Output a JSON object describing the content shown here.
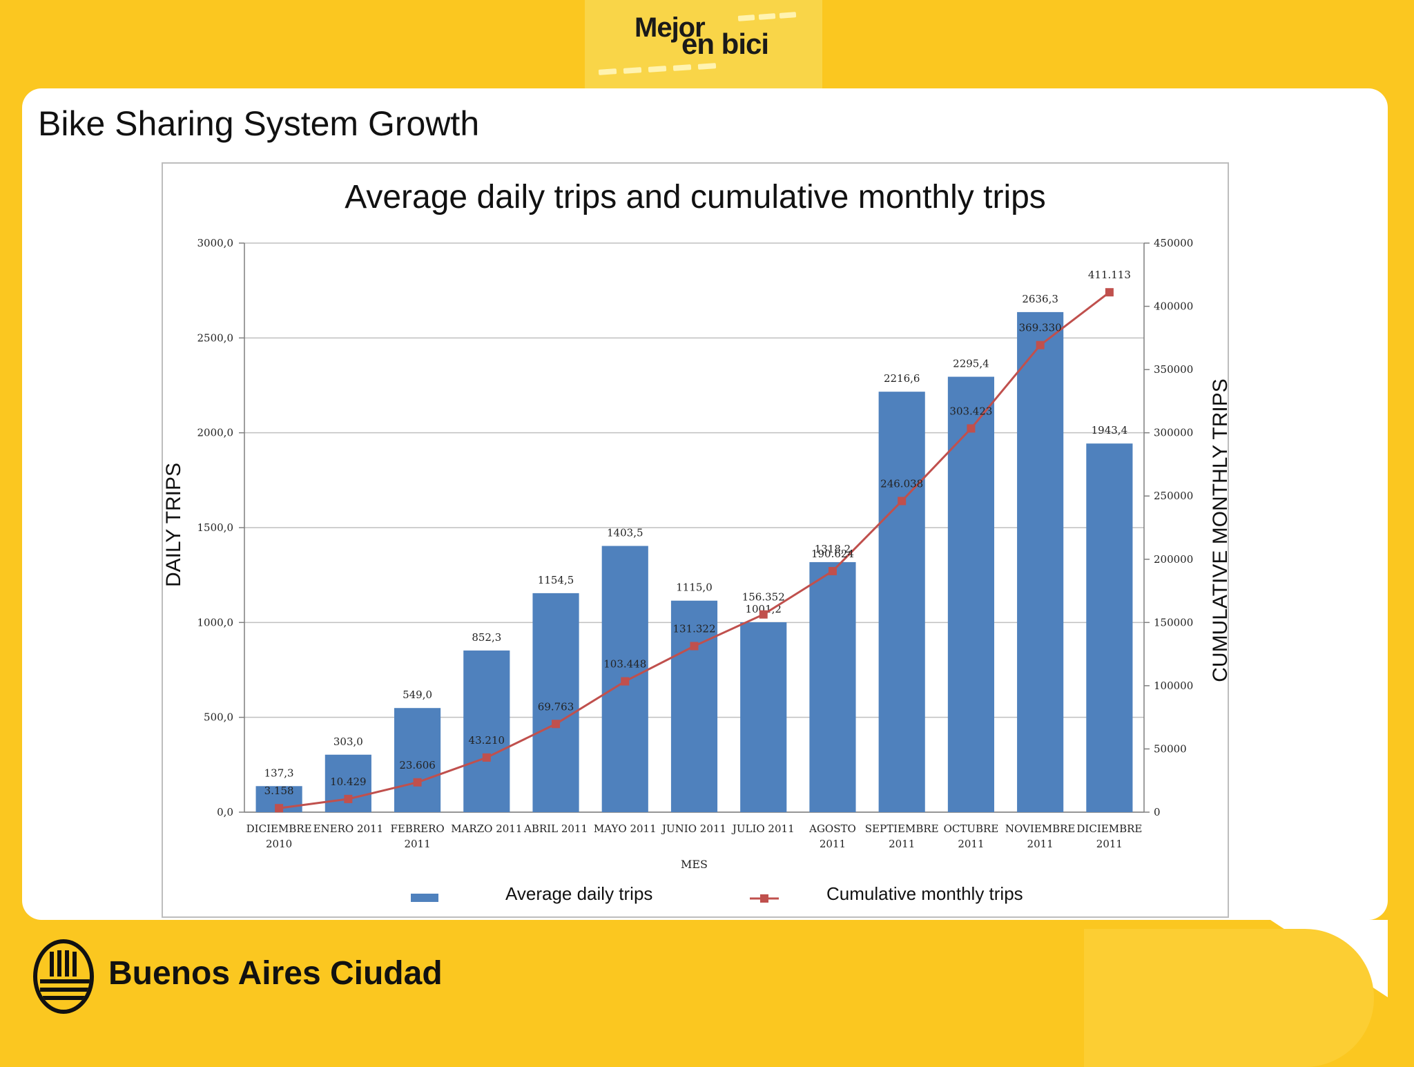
{
  "header": {
    "logo_line1": "Mejor",
    "logo_line2": "en bici"
  },
  "slide": {
    "title": "Bike Sharing System Growth"
  },
  "footer": {
    "org_name": "Buenos Aires Ciudad"
  },
  "colors": {
    "background": "#fbc720",
    "bar": "#4f81bd",
    "line": "#c0504d"
  },
  "chart_data": {
    "type": "bar",
    "title": "Average daily trips and cumulative monthly trips",
    "xlabel": "MES",
    "ylabel": "DAILY TRIPS",
    "y2label": "CUMULATIVE MONTHLY TRIPS",
    "ylim": [
      0,
      3000
    ],
    "y2lim": [
      0,
      450000
    ],
    "yticks": [
      "0,0",
      "500,0",
      "1000,0",
      "1500,0",
      "2000,0",
      "2500,0",
      "3000,0"
    ],
    "y2ticks": [
      "0",
      "50000",
      "100000",
      "150000",
      "200000",
      "250000",
      "300000",
      "350000",
      "400000",
      "450000"
    ],
    "grid": true,
    "legend_position": "bottom",
    "categories": [
      [
        "DICIEMBRE",
        "2010"
      ],
      [
        "ENERO 2011"
      ],
      [
        "FEBRERO",
        "2011"
      ],
      [
        "MARZO 2011"
      ],
      [
        "ABRIL 2011"
      ],
      [
        "MAYO 2011"
      ],
      [
        "JUNIO 2011"
      ],
      [
        "JULIO 2011"
      ],
      [
        "AGOSTO",
        "2011"
      ],
      [
        "SEPTIEMBRE",
        "2011"
      ],
      [
        "OCTUBRE",
        "2011"
      ],
      [
        "NOVIEMBRE",
        "2011"
      ],
      [
        "DICIEMBRE",
        "2011"
      ]
    ],
    "series": [
      {
        "name": "Average daily trips",
        "type": "bar",
        "axis": "left",
        "values": [
          137.3,
          303.0,
          549.0,
          852.3,
          1154.5,
          1403.5,
          1115.0,
          1001.2,
          1318.2,
          2216.6,
          2295.4,
          2636.3,
          1943.4
        ],
        "labels": [
          "137,3",
          "303,0",
          "549,0",
          "852,3",
          "1154,5",
          "1403,5",
          "1115,0",
          "1001,2",
          "1318,2",
          "2216,6",
          "2295,4",
          "2636,3",
          "1943,4"
        ]
      },
      {
        "name": "Cumulative monthly trips",
        "type": "line",
        "axis": "right",
        "values": [
          3158,
          10429,
          23606,
          43210,
          69763,
          103448,
          131322,
          156352,
          190624,
          246038,
          303423,
          369330,
          411113
        ],
        "labels": [
          "3.158",
          "10.429",
          "23.606",
          "43.210",
          "69.763",
          "103.448",
          "131.322",
          "156.352",
          "190.624",
          "246.038",
          "303.423",
          "369.330",
          "411.113"
        ]
      }
    ]
  }
}
